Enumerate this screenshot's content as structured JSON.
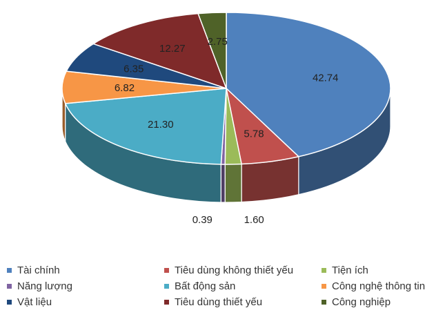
{
  "chart_data": {
    "type": "pie",
    "title": "",
    "style": "3d-oblique",
    "legend_position": "bottom",
    "slices": [
      {
        "label": "Tài chính",
        "value": 42.74,
        "color": "#4F81BD",
        "display": "42.74"
      },
      {
        "label": "Tiêu dùng không thiết yếu",
        "value": 5.78,
        "color": "#C0504D",
        "display": "5.78"
      },
      {
        "label": "Tiện ích",
        "value": 1.6,
        "color": "#9BBB59",
        "display": "1.60"
      },
      {
        "label": "Năng lượng",
        "value": 0.39,
        "color": "#8064A2",
        "display": "0.39"
      },
      {
        "label": "Bất động sản",
        "value": 21.3,
        "color": "#4BACC6",
        "display": "21.30"
      },
      {
        "label": "Công nghệ thông tin",
        "value": 6.82,
        "color": "#F79646",
        "display": "6.82"
      },
      {
        "label": "Vật liệu",
        "value": 6.35,
        "color": "#1F497D",
        "display": "6.35"
      },
      {
        "label": "Tiêu dùng thiết yếu",
        "value": 12.27,
        "color": "#7F2A2A",
        "display": "12.27"
      },
      {
        "label": "Công nghiệp",
        "value": 2.75,
        "color": "#4F6228",
        "display": "2.75"
      }
    ]
  }
}
